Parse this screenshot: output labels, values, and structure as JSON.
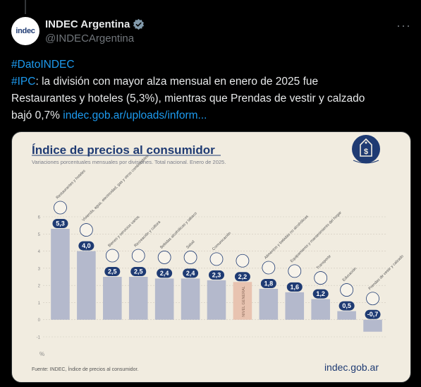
{
  "account": {
    "display_name": "INDEC Argentina",
    "handle": "@INDECArgentina",
    "avatar_text": "indec",
    "verified_icon": "verified-badge-icon",
    "more_icon": "more-options-icon"
  },
  "tweet": {
    "hashtag1": "#DatoINDEC",
    "hashtag2": "#IPC",
    "text_line1": ": la división con mayor alza mensual en enero de 2025 fue",
    "text_line2": "Restaurantes y hoteles (5,3%), mientras que Prendas de vestir y calzado",
    "text_line3_prefix": "bajó 0,7% ",
    "link": "indec.gob.ar/uploads/inform..."
  },
  "colors": {
    "link": "#1d9bf0",
    "card_bg": "#f1ece0",
    "title": "#1f3b73",
    "bar": "#b4b9cc",
    "bar_general": "#e8c3b0",
    "badge": "#1f3b73"
  },
  "chart_data": {
    "type": "bar",
    "title": "Índice de precios al consumidor",
    "subtitle": "Variaciones porcentuales mensuales por divisiones. Total nacional. Enero de 2025.",
    "ylabel": "%",
    "ylim": [
      -1,
      6
    ],
    "yticks": [
      -1,
      0,
      1,
      2,
      3,
      4,
      5,
      6
    ],
    "categories": [
      "Restaurantes y hoteles",
      "Vivienda, agua, electricidad, gas y otros combustibles",
      "Bienes y servicios varios",
      "Recreación y cultura",
      "Bebidas alcohólicas y tabaco",
      "Salud",
      "Comunicación",
      "NIVEL GENERAL",
      "Alimentos y bebidas no alcohólicas",
      "Equipamiento y mantenimiento del hogar",
      "Transporte",
      "Educación",
      "Prendas de vestir y calzado"
    ],
    "values": [
      5.3,
      4.0,
      2.5,
      2.5,
      2.4,
      2.4,
      2.3,
      2.2,
      1.8,
      1.6,
      1.2,
      0.5,
      -0.7
    ],
    "value_labels": [
      "5,3",
      "4,0",
      "2,5",
      "2,5",
      "2,4",
      "2,4",
      "2,3",
      "2,2",
      "1,8",
      "1,6",
      "1,2",
      "0,5",
      "-0,7"
    ],
    "general_label": "NIVEL GENERAL",
    "source": "Fuente: INDEC, Índice de precios al consumidor.",
    "logo_text": "indec.gob.ar"
  }
}
